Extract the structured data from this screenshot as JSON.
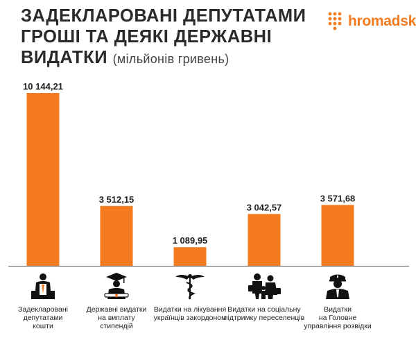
{
  "header": {
    "title_line1": "ЗАДЕКЛАРОВАНІ ДЕПУТАТАМИ",
    "title_line2": "ГРОШІ ТА ДЕЯКІ ДЕРЖАВНІ",
    "title_line3": "ВИДАТКИ",
    "unit": "(мільйонів гривень)",
    "logo_text": "hromadske"
  },
  "colors": {
    "accent": "#f47b20",
    "text": "#2a2a2a",
    "axis": "#555555"
  },
  "chart_data": {
    "type": "bar",
    "title": "ЗАДЕКЛАРОВАНІ ДЕПУТАТАМИ ГРОШІ ТА ДЕЯКІ ДЕРЖАВНІ ВИДАТКИ",
    "subtitle": "(мільйонів гривень)",
    "xlabel": "",
    "ylabel": "",
    "grid": false,
    "ylim": [
      0,
      10144.21
    ],
    "categories": [
      "Задекларовані депутатами кошти",
      "Державні видатки на виплату стипендій",
      "Видатки на лікування українців закордоном",
      "Видатки на соціальну підтримку переселенців",
      "Видатки на Головне управління розвідки"
    ],
    "label_lines": [
      [
        "Задекларовані",
        "депутатами",
        "кошти"
      ],
      [
        "Державні видатки",
        "на виплату",
        "стипендій"
      ],
      [
        "Видатки на лікування",
        "українців закордоном"
      ],
      [
        "Видатки на соціальну",
        "підтримку переселенців"
      ],
      [
        "Видатки",
        "на Головне",
        "управління розвідки"
      ]
    ],
    "values": [
      10144.21,
      3512.15,
      1089.95,
      3042.57,
      3571.68
    ],
    "value_labels": [
      "10 144,21",
      "3 512,15",
      "1 089,95",
      "3 042,57",
      "3 571,68"
    ],
    "icons": [
      "person-with-money-icon",
      "graduate-with-diploma-icon",
      "caduceus-medical-icon",
      "family-refugees-icon",
      "officer-intelligence-icon"
    ]
  }
}
